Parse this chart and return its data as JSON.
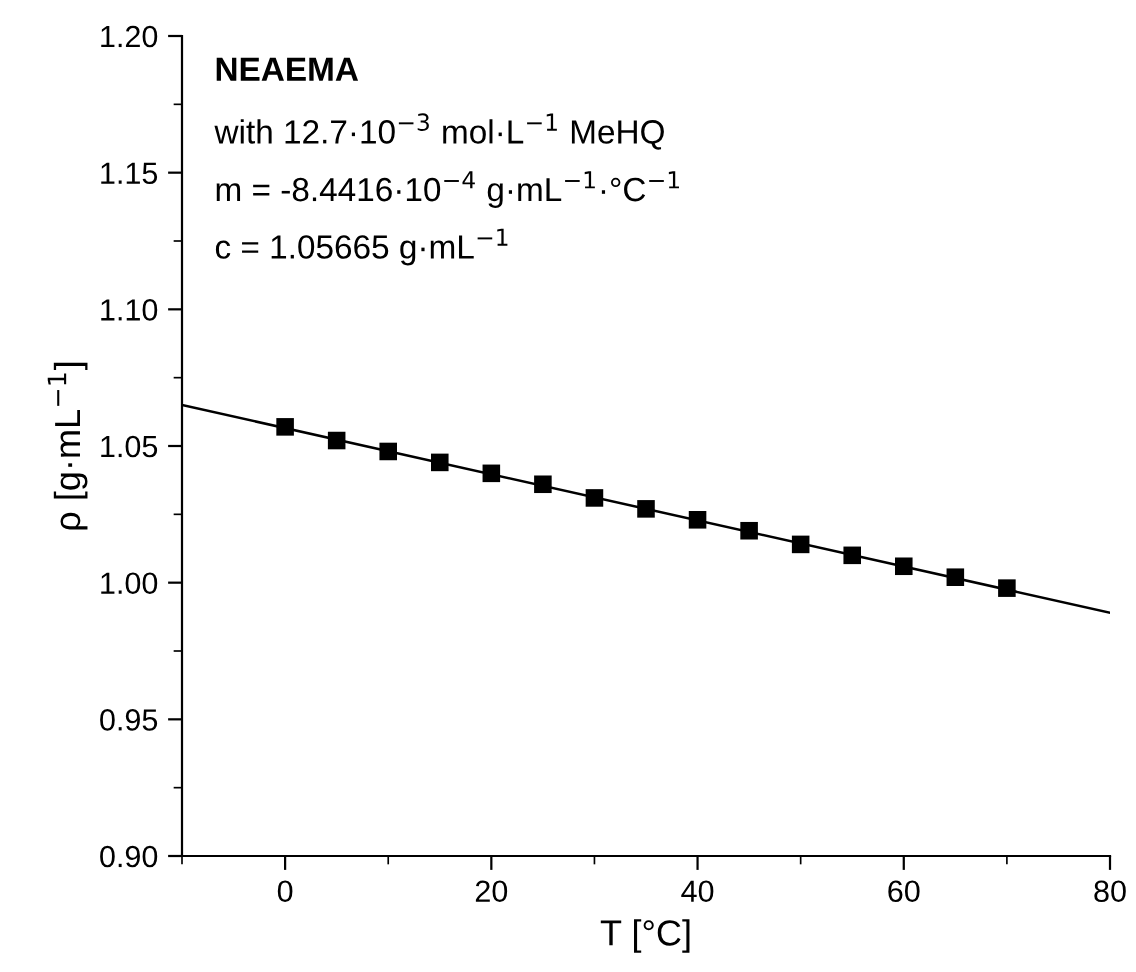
{
  "chart_data": {
    "type": "scatter",
    "title": "NEAEMA",
    "xlabel": "T [°C]",
    "ylabel": "ρ [g·mL$^{−1}$]",
    "annotations": [
      "with 12.7·10$^{−3}$ mol·L$^{−1}$ MeHQ",
      "m = -8.4416·10$^{−4}$ g·mL$^{−1}$·°C$^{−1}$",
      "c = 1.05665 g·mL$^{−1}$"
    ],
    "xlim": [
      -10,
      80
    ],
    "xticks": [
      0,
      20,
      40,
      60,
      80
    ],
    "ylim": [
      0.9,
      1.2
    ],
    "yticks": [
      {
        "value": 0.9,
        "label": "0.90"
      },
      {
        "value": 0.95,
        "label": "0.95"
      },
      {
        "value": 1.0,
        "label": "1.00"
      },
      {
        "value": 1.05,
        "label": "1.05"
      },
      {
        "value": 1.1,
        "label": "1.10"
      },
      {
        "value": 1.15,
        "label": "1.15"
      },
      {
        "value": 1.2,
        "label": "1.20"
      }
    ],
    "grid": false,
    "legend": false,
    "marker": "square",
    "series": [
      {
        "color": "#000000",
        "x": [
          0,
          5,
          10,
          15,
          20,
          25,
          30,
          35,
          40,
          45,
          50,
          55,
          60,
          65,
          70
        ],
        "values": [
          1.057,
          1.052,
          1.048,
          1.044,
          1.04,
          1.036,
          1.031,
          1.027,
          1.023,
          1.019,
          1.014,
          1.01,
          1.006,
          1.002,
          0.998
        ]
      },
      {
        "type": "line",
        "color": "#000000",
        "marker": "none",
        "x": [
          -10,
          80
        ],
        "values": [
          1.065,
          0.989
        ]
      }
    ]
  }
}
